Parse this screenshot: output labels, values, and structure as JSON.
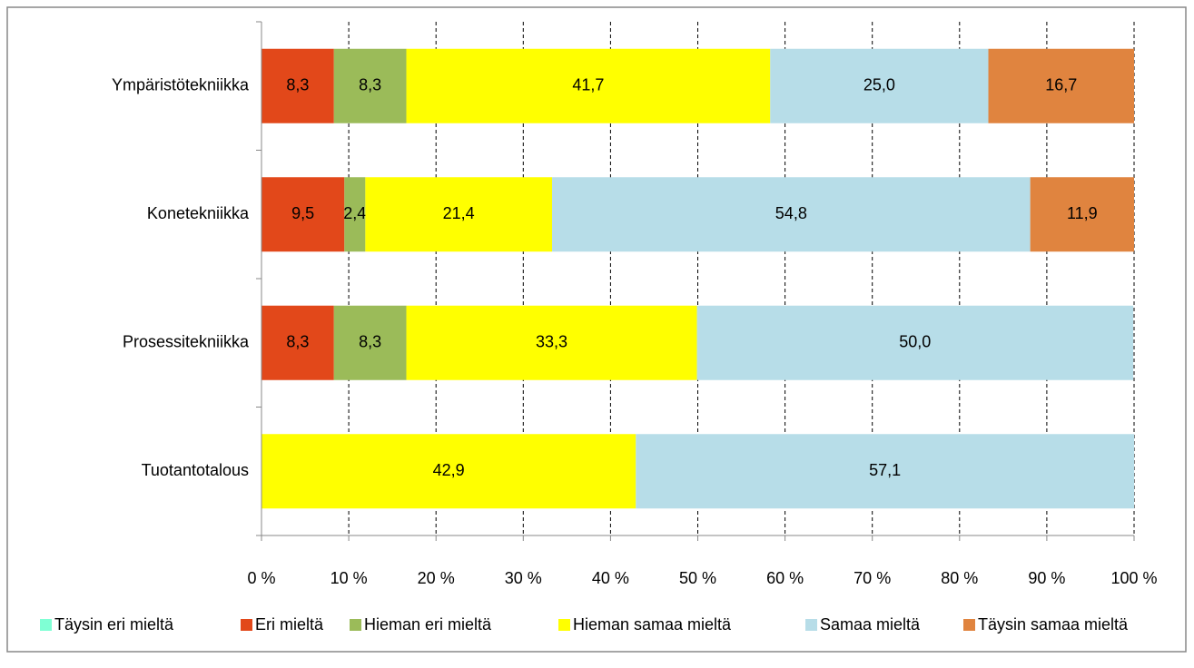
{
  "chart_data": {
    "type": "stacked_bar_horizontal",
    "categories": [
      "Ympäristötekniikka",
      "Konetekniikka",
      "Prosessitekniikka",
      "Tuotantotalous"
    ],
    "series": [
      {
        "name": "Täysin eri mieltä",
        "color": "#7fffd4",
        "values": [
          null,
          null,
          null,
          null
        ]
      },
      {
        "name": "Eri mieltä",
        "color": "#e2481a",
        "values": [
          8.3,
          9.5,
          8.3,
          null
        ],
        "value_labels": [
          "8,3",
          "9,5",
          "8,3",
          null
        ]
      },
      {
        "name": "Hieman eri mieltä",
        "color": "#9bbb59",
        "values": [
          8.3,
          2.4,
          8.3,
          null
        ],
        "value_labels": [
          "8,3",
          "2,4",
          "8,3",
          null
        ]
      },
      {
        "name": "Hieman samaa mieltä",
        "color": "#ffff00",
        "values": [
          41.7,
          21.4,
          33.3,
          42.9
        ],
        "value_labels": [
          "41,7",
          "21,4",
          "33,3",
          "42,9"
        ]
      },
      {
        "name": "Samaa mieltä",
        "color": "#b7dde8",
        "values": [
          25.0,
          54.8,
          50.0,
          57.1
        ],
        "value_labels": [
          "25,0",
          "54,8",
          "50,0",
          "57,1"
        ]
      },
      {
        "name": "Täysin samaa mieltä",
        "color": "#e0843f",
        "values": [
          16.7,
          11.9,
          null,
          null
        ],
        "value_labels": [
          "16,7",
          "11,9",
          null,
          null
        ]
      }
    ],
    "xlim": [
      0,
      100
    ],
    "xticks": [
      {
        "value": 0,
        "label": "0 %"
      },
      {
        "value": 10,
        "label": "10 %"
      },
      {
        "value": 20,
        "label": "20 %"
      },
      {
        "value": 30,
        "label": "30 %"
      },
      {
        "value": 40,
        "label": "40 %"
      },
      {
        "value": 50,
        "label": "50 %"
      },
      {
        "value": 60,
        "label": "60 %"
      },
      {
        "value": 70,
        "label": "70 %"
      },
      {
        "value": 80,
        "label": "80 %"
      },
      {
        "value": 90,
        "label": "90 %"
      },
      {
        "value": 100,
        "label": "100 %"
      }
    ],
    "grid": true,
    "legend": "bottom"
  }
}
